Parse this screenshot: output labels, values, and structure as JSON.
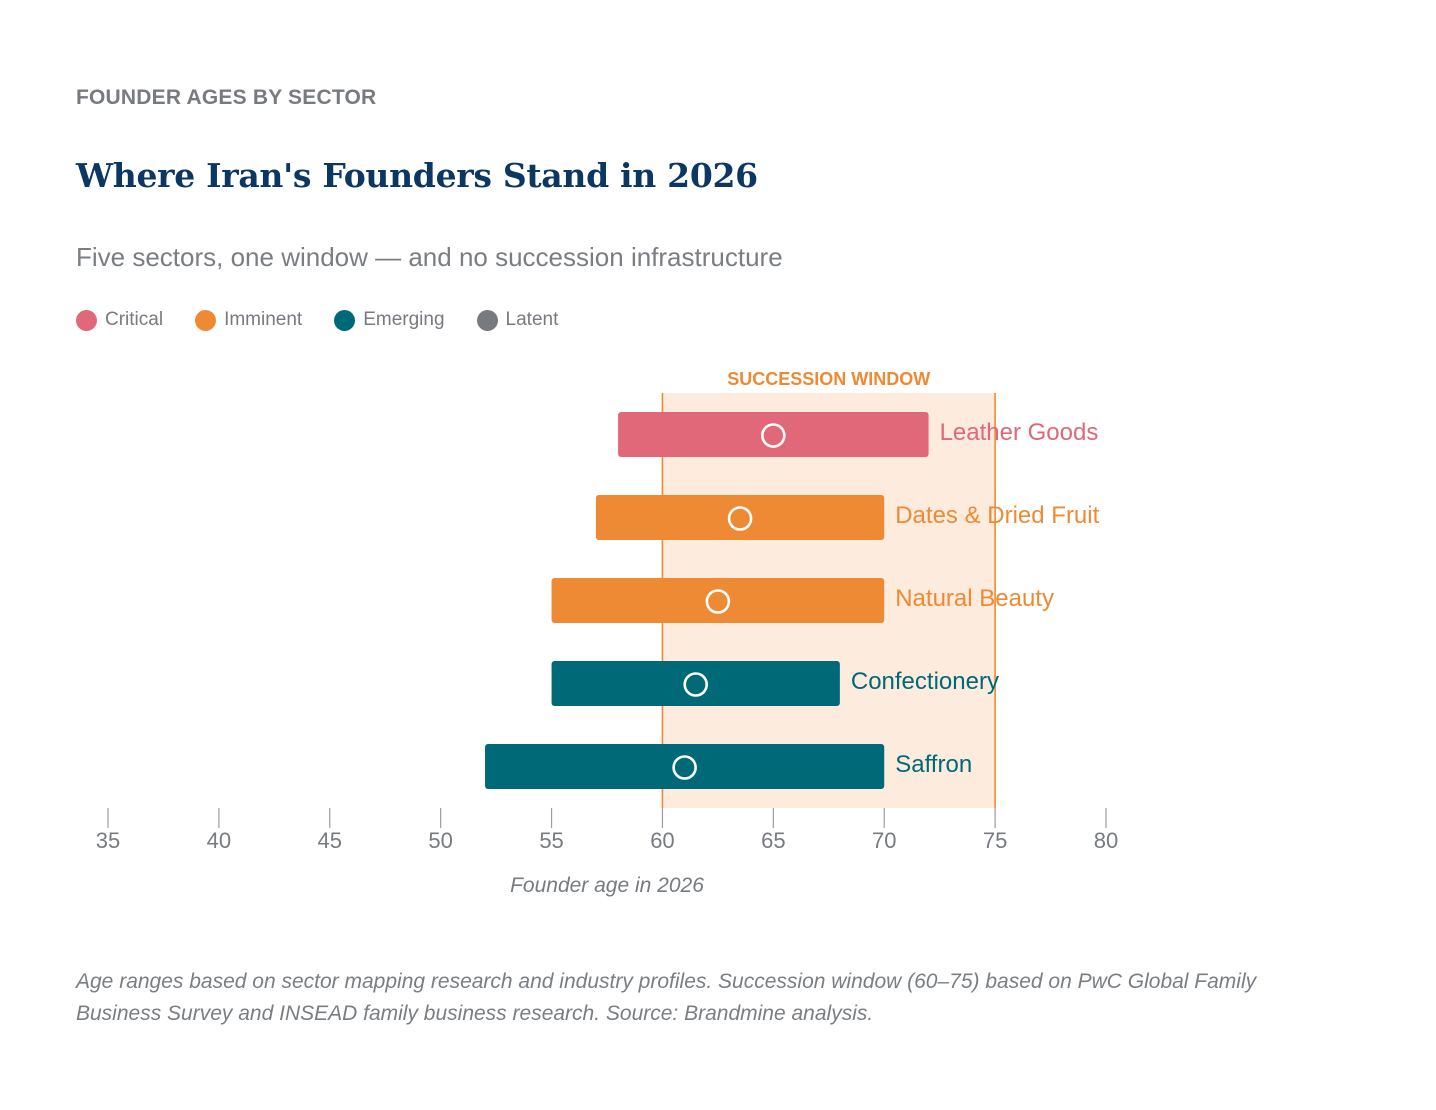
{
  "header": {
    "kicker": "FOUNDER AGES BY SECTOR",
    "title": "Where Iran's Founders Stand in 2026",
    "subtitle": "Five sectors, one window — and no succession infrastructure"
  },
  "legend": [
    {
      "label": "Critical",
      "color": "#e06878"
    },
    {
      "label": "Imminent",
      "color": "#ee8a33"
    },
    {
      "label": "Emerging",
      "color": "#006978"
    },
    {
      "label": "Latent",
      "color": "#777b80"
    }
  ],
  "chart_data": {
    "type": "range-bar",
    "title": "Where Iran's Founders Stand in 2026",
    "xlabel": "Founder age in 2026",
    "xlim": [
      35,
      80
    ],
    "xticks": [
      35,
      40,
      45,
      50,
      55,
      60,
      65,
      70,
      75,
      80
    ],
    "window": {
      "label": "SUCCESSION WINDOW",
      "start": 60,
      "end": 75,
      "color": "#ee8a33",
      "fill": "#fdebdd"
    },
    "series": [
      {
        "name": "Leather Goods",
        "min": 58,
        "max": 72,
        "median": 65,
        "status": "Critical",
        "color": "#e06878"
      },
      {
        "name": "Dates & Dried Fruit",
        "min": 57,
        "max": 70,
        "median": 63.5,
        "status": "Imminent",
        "color": "#ee8a33"
      },
      {
        "name": "Natural Beauty",
        "min": 55,
        "max": 70,
        "median": 62.5,
        "status": "Imminent",
        "color": "#ee8a33"
      },
      {
        "name": "Confectionery",
        "min": 55,
        "max": 68,
        "median": 61.5,
        "status": "Emerging",
        "color": "#006978"
      },
      {
        "name": "Saffron",
        "min": 52,
        "max": 70,
        "median": 61,
        "status": "Emerging",
        "color": "#006978"
      }
    ],
    "grid": false,
    "legend_position": "top-left"
  },
  "footnote": "Age ranges based on sector mapping research and industry profiles. Succession window (60–75) based on PwC Global Family Business Survey and INSEAD family business research. Source: Brandmine analysis."
}
